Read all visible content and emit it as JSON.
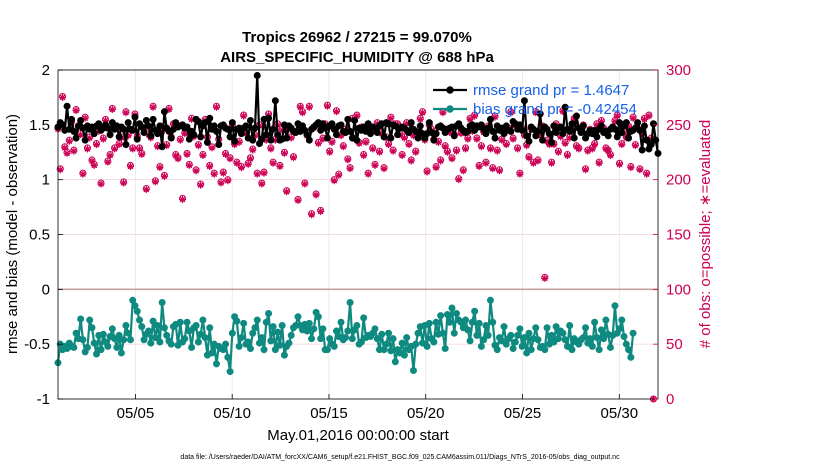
{
  "chart_data": {
    "type": "line",
    "title": "Tropics 26962 / 27215 = 99.070%",
    "subtitle": "AIRS_SPECIFIC_HUMIDITY @ 688 hPa",
    "xlabel": "May.01,2016 00:00:00 start",
    "ylabel": "rmse and bias (model - observation)",
    "ylabel_right": "# of obs: o=possible; ∗=evaluated",
    "ylim": [
      -1,
      2
    ],
    "ylim_right": [
      0,
      300
    ],
    "xlim": [
      1.0,
      32.0
    ],
    "y_ticks": [
      "-1",
      "-0.5",
      "0",
      "0.5",
      "1",
      "1.5",
      "2"
    ],
    "y_ticks_right": [
      "0",
      "50",
      "100",
      "150",
      "200",
      "250",
      "300"
    ],
    "x_ticks": [
      {
        "x": 5,
        "label": "05/05"
      },
      {
        "x": 10,
        "label": "05/10"
      },
      {
        "x": 15,
        "label": "05/15"
      },
      {
        "x": 20,
        "label": "05/20"
      },
      {
        "x": 25,
        "label": "05/25"
      },
      {
        "x": 30,
        "label": "05/30"
      }
    ],
    "legend": [
      {
        "name": "rmse grand pr = 1.4647",
        "color": "#000000"
      },
      {
        "name": "bias grand pr = -0.42454",
        "color": "#0f8a80"
      }
    ],
    "colors": {
      "rmse": "#000000",
      "bias": "#0f8a80",
      "obs": "#cc0055",
      "zero_line": "#c8a0a0"
    },
    "rmse_values": [
      1.48,
      1.52,
      1.5,
      1.45,
      1.67,
      1.46,
      1.55,
      1.44,
      1.38,
      1.49,
      1.54,
      1.47,
      1.36,
      1.49,
      1.46,
      1.48,
      1.42,
      1.49,
      1.51,
      1.45,
      1.47,
      1.5,
      1.47,
      1.41,
      1.52,
      1.46,
      1.49,
      1.39,
      1.48,
      1.46,
      1.32,
      1.52,
      1.46,
      1.45,
      1.57,
      1.37,
      1.51,
      1.48,
      1.43,
      1.54,
      1.49,
      1.4,
      1.55,
      1.45,
      1.42,
      1.49,
      1.3,
      1.62,
      1.47,
      1.44,
      1.38,
      1.46,
      1.52,
      1.48,
      1.49,
      1.5,
      1.47,
      1.48,
      1.37,
      1.44,
      1.41,
      1.55,
      1.53,
      1.39,
      1.49,
      1.52,
      1.34,
      1.56,
      1.46,
      1.49,
      1.44,
      1.32,
      1.49,
      1.5,
      1.47,
      1.46,
      1.39,
      1.52,
      1.35,
      1.46,
      1.47,
      1.42,
      1.47,
      1.49,
      1.38,
      1.54,
      1.36,
      1.47,
      1.95,
      1.33,
      1.37,
      1.55,
      1.41,
      1.56,
      1.36,
      1.46,
      1.72,
      1.41,
      1.36,
      1.37,
      1.5,
      1.38,
      1.49,
      1.47,
      1.44,
      1.43,
      1.51,
      1.44,
      1.49,
      1.45,
      1.41,
      1.36,
      1.46,
      1.48,
      1.5,
      1.52,
      1.45,
      1.51,
      1.47,
      1.38,
      1.49,
      1.51,
      1.46,
      1.41,
      1.49,
      1.5,
      1.44,
      1.43,
      1.55,
      1.44,
      1.38,
      1.54,
      1.36,
      1.47,
      1.45,
      1.48,
      1.44,
      1.51,
      1.42,
      1.48,
      1.47,
      1.43,
      1.49,
      1.51,
      1.39,
      1.52,
      1.51,
      1.38,
      1.5,
      1.49,
      1.41,
      1.47,
      1.48,
      1.47,
      1.45,
      1.43,
      1.52,
      1.46,
      1.44,
      1.38,
      1.49,
      1.42,
      1.38,
      1.42,
      1.52,
      1.43,
      1.36,
      1.42,
      1.48,
      1.49,
      1.47,
      1.43,
      1.46,
      1.47,
      1.48,
      1.4,
      1.49,
      1.51,
      1.47,
      1.45,
      1.43,
      1.44,
      1.49,
      1.5,
      1.45,
      1.49,
      1.48,
      1.5,
      1.46,
      1.42,
      1.47,
      1.55,
      1.44,
      1.38,
      1.49,
      1.45,
      1.47,
      1.42,
      1.49,
      1.45,
      1.44,
      1.53,
      1.51,
      1.46,
      1.5,
      1.45,
      1.72,
      1.4,
      1.35,
      1.48,
      1.46,
      1.4,
      1.44,
      1.6,
      1.36,
      1.48,
      1.46,
      1.42,
      1.34,
      1.49,
      1.43,
      1.47,
      1.48,
      1.42,
      1.66,
      1.46,
      1.44,
      1.51,
      1.38,
      1.58,
      1.47,
      1.43,
      1.49,
      1.38,
      1.42,
      1.45,
      1.42,
      1.45,
      1.39,
      1.46,
      1.49,
      1.43,
      1.44,
      1.4,
      1.46,
      1.48,
      1.46,
      1.39,
      1.52,
      1.43,
      1.49,
      1.52,
      1.38,
      1.44,
      1.45,
      1.47,
      1.52,
      1.45,
      1.27,
      1.49,
      1.36,
      1.28,
      1.32,
      1.51,
      1.36,
      1.24
    ],
    "bias_values": [
      -0.67,
      -0.5,
      -0.55,
      -0.52,
      -0.54,
      -0.49,
      -0.52,
      -0.53,
      -0.4,
      -0.45,
      -0.27,
      -0.46,
      -0.57,
      -0.53,
      -0.28,
      -0.35,
      -0.49,
      -0.59,
      -0.42,
      -0.55,
      -0.41,
      -0.48,
      -0.52,
      -0.43,
      -0.36,
      -0.45,
      -0.53,
      -0.42,
      -0.58,
      -0.46,
      -0.33,
      -0.4,
      -0.46,
      -0.1,
      -0.15,
      -0.2,
      -0.28,
      -0.34,
      -0.46,
      -0.41,
      -0.38,
      -0.49,
      -0.29,
      -0.44,
      -0.33,
      -0.48,
      -0.12,
      -0.35,
      -0.42,
      -0.47,
      -0.5,
      -0.34,
      -0.32,
      -0.51,
      -0.3,
      -0.48,
      -0.45,
      -0.3,
      -0.38,
      -0.53,
      -0.35,
      -0.33,
      -0.48,
      -0.41,
      -0.28,
      -0.44,
      -0.6,
      -0.35,
      -0.58,
      -0.5,
      -0.68,
      -0.52,
      -0.54,
      -0.55,
      -0.5,
      -0.62,
      -0.75,
      -0.4,
      -0.25,
      -0.29,
      -0.52,
      -0.44,
      -0.31,
      -0.5,
      -0.48,
      -0.54,
      -0.4,
      -0.35,
      -0.28,
      -0.49,
      -0.44,
      -0.55,
      -0.3,
      -0.22,
      -0.47,
      -0.34,
      -0.55,
      -0.39,
      -0.51,
      -0.33,
      -0.6,
      -0.52,
      -0.49,
      -0.42,
      -0.35,
      -0.33,
      -0.25,
      -0.33,
      -0.37,
      -0.32,
      -0.38,
      -0.31,
      -0.45,
      -0.36,
      -0.21,
      -0.25,
      -0.45,
      -0.36,
      -0.55,
      -0.55,
      -0.45,
      -0.5,
      -0.52,
      -0.38,
      -0.43,
      -0.3,
      -0.46,
      -0.44,
      -0.38,
      -0.12,
      -0.45,
      -0.37,
      -0.33,
      -0.5,
      -0.48,
      -0.26,
      -0.44,
      -0.42,
      -0.43,
      -0.4,
      -0.36,
      -0.45,
      -0.55,
      -0.41,
      -0.55,
      -0.5,
      -0.4,
      -0.56,
      -0.45,
      -0.66,
      -0.55,
      -0.58,
      -0.49,
      -0.6,
      -0.44,
      -0.55,
      -0.52,
      -0.74,
      -0.5,
      -0.4,
      -0.34,
      -0.49,
      -0.33,
      -0.52,
      -0.31,
      -0.45,
      -0.48,
      -0.3,
      -0.41,
      -0.24,
      -0.4,
      -0.54,
      -0.23,
      -0.3,
      -0.17,
      -0.4,
      -0.22,
      -0.28,
      -0.3,
      -0.35,
      -0.28,
      -0.37,
      -0.47,
      -0.3,
      -0.2,
      -0.42,
      -0.31,
      -0.52,
      -0.46,
      -0.33,
      -0.42,
      -0.1,
      -0.3,
      -0.51,
      -0.55,
      -0.44,
      -0.47,
      -0.34,
      -0.5,
      -0.45,
      -0.42,
      -0.54,
      -0.48,
      -0.42,
      -0.36,
      -0.52,
      -0.44,
      -0.58,
      -0.4,
      -0.55,
      -0.45,
      -0.35,
      -0.46,
      -0.53,
      -0.52,
      -0.55,
      -0.35,
      -0.5,
      -0.42,
      -0.48,
      -0.34,
      -0.45,
      -0.38,
      -0.4,
      -0.46,
      -0.52,
      -0.33,
      -0.55,
      -0.45,
      -0.48,
      -0.5,
      -0.46,
      -0.44,
      -0.35,
      -0.49,
      -0.45,
      -0.52,
      -0.3,
      -0.44,
      -0.55,
      -0.37,
      -0.45,
      -0.28,
      -0.41,
      -0.53,
      -0.42,
      -0.15,
      -0.4,
      -0.36,
      -0.28,
      -0.43,
      -0.5,
      -0.55,
      -0.62,
      -0.4
    ],
    "obs_evaluated": [
      246,
      209,
      275,
      229,
      224,
      235,
      252,
      226,
      263,
      248,
      241,
      205,
      256,
      228,
      238,
      217,
      213,
      232,
      244,
      196,
      237,
      254,
      216,
      222,
      264,
      228,
      247,
      232,
      238,
      197,
      261,
      240,
      212,
      228,
      259,
      239,
      228,
      223,
      246,
      191,
      241,
      238,
      266,
      198,
      230,
      211,
      244,
      203,
      231,
      264,
      238,
      250,
      222,
      219,
      236,
      182,
      242,
      223,
      213,
      255,
      239,
      208,
      231,
      195,
      222,
      254,
      238,
      212,
      229,
      205,
      266,
      236,
      197,
      206,
      223,
      199,
      219,
      248,
      232,
      215,
      234,
      211,
      258,
      242,
      214,
      219,
      227,
      240,
      205,
      249,
      196,
      206,
      236,
      259,
      228,
      215,
      236,
      250,
      212,
      245,
      224,
      189,
      246,
      238,
      220,
      243,
      181,
      266,
      261,
      196,
      240,
      266,
      168,
      247,
      186,
      233,
      171,
      237,
      250,
      267,
      225,
      234,
      199,
      262,
      204,
      240,
      230,
      245,
      218,
      210,
      255,
      237,
      258,
      233,
      247,
      222,
      234,
      205,
      244,
      228,
      213,
      251,
      225,
      242,
      210,
      238,
      232,
      256,
      226,
      250,
      250,
      241,
      222,
      238,
      251,
      232,
      217,
      240,
      225,
      242,
      255,
      261,
      236,
      207,
      249,
      245,
      236,
      211,
      234,
      217,
      261,
      230,
      225,
      243,
      219,
      240,
      226,
      200,
      242,
      208,
      228,
      237,
      255,
      244,
      258,
      237,
      212,
      230,
      243,
      215,
      248,
      228,
      210,
      257,
      226,
      208,
      236,
      245,
      232,
      246,
      261,
      237,
      249,
      228,
      205,
      246,
      240,
      231,
      220,
      246,
      215,
      261,
      217,
      240,
      248,
      110,
      235,
      232,
      215,
      232,
      250,
      225,
      239,
      262,
      233,
      222,
      238,
      247,
      255,
      230,
      228,
      243,
      249,
      209,
      226,
      245,
      228,
      232,
      250,
      215,
      253,
      246,
      228,
      226,
      222,
      247,
      253,
      258,
      214,
      232,
      242,
      238,
      248,
      211,
      256,
      231,
      246,
      209,
      242,
      255,
      205,
      258,
      237,
      0
    ],
    "obs_possible": [
      247,
      210,
      276,
      230,
      225,
      236,
      253,
      227,
      264,
      249,
      242,
      206,
      257,
      229,
      239,
      218,
      214,
      233,
      245,
      197,
      238,
      255,
      217,
      223,
      265,
      229,
      248,
      233,
      239,
      198,
      262,
      241,
      213,
      229,
      260,
      240,
      229,
      224,
      247,
      192,
      242,
      239,
      267,
      199,
      231,
      212,
      245,
      204,
      232,
      265,
      239,
      251,
      223,
      220,
      237,
      183,
      243,
      224,
      214,
      256,
      240,
      209,
      232,
      196,
      223,
      255,
      239,
      213,
      230,
      206,
      267,
      237,
      198,
      207,
      224,
      200,
      220,
      249,
      233,
      216,
      235,
      212,
      259,
      243,
      215,
      220,
      228,
      241,
      206,
      250,
      197,
      207,
      237,
      260,
      229,
      216,
      237,
      251,
      213,
      246,
      225,
      190,
      247,
      239,
      221,
      244,
      182,
      267,
      262,
      197,
      241,
      267,
      169,
      248,
      187,
      234,
      172,
      238,
      251,
      268,
      226,
      235,
      200,
      263,
      205,
      241,
      231,
      246,
      219,
      211,
      256,
      238,
      259,
      234,
      248,
      223,
      235,
      206,
      245,
      229,
      214,
      252,
      226,
      243,
      211,
      239,
      233,
      257,
      227,
      251,
      251,
      242,
      223,
      239,
      252,
      233,
      218,
      241,
      226,
      243,
      256,
      262,
      237,
      208,
      250,
      246,
      237,
      212,
      235,
      218,
      262,
      231,
      226,
      244,
      220,
      241,
      227,
      201,
      243,
      209,
      229,
      238,
      256,
      245,
      259,
      238,
      213,
      231,
      244,
      216,
      249,
      229,
      211,
      258,
      227,
      209,
      237,
      246,
      233,
      247,
      262,
      238,
      250,
      229,
      206,
      247,
      241,
      232,
      221,
      247,
      216,
      262,
      218,
      241,
      249,
      111,
      236,
      233,
      216,
      233,
      251,
      226,
      240,
      263,
      234,
      223,
      239,
      248,
      256,
      231,
      229,
      244,
      250,
      210,
      227,
      246,
      229,
      233,
      251,
      216,
      254,
      247,
      229,
      227,
      223,
      248,
      254,
      259,
      215,
      233,
      243,
      239,
      249,
      212,
      257,
      232,
      247,
      210,
      243,
      256,
      206,
      259,
      238,
      0
    ]
  },
  "footnote": "data file: /Users/raeder/DAI/ATM_forcXX/CAM6_setup/f.e21.FHIST_BGC.f09_025.CAM6assim.011/Diags_NTrS_2016-05/obs_diag_output.nc"
}
